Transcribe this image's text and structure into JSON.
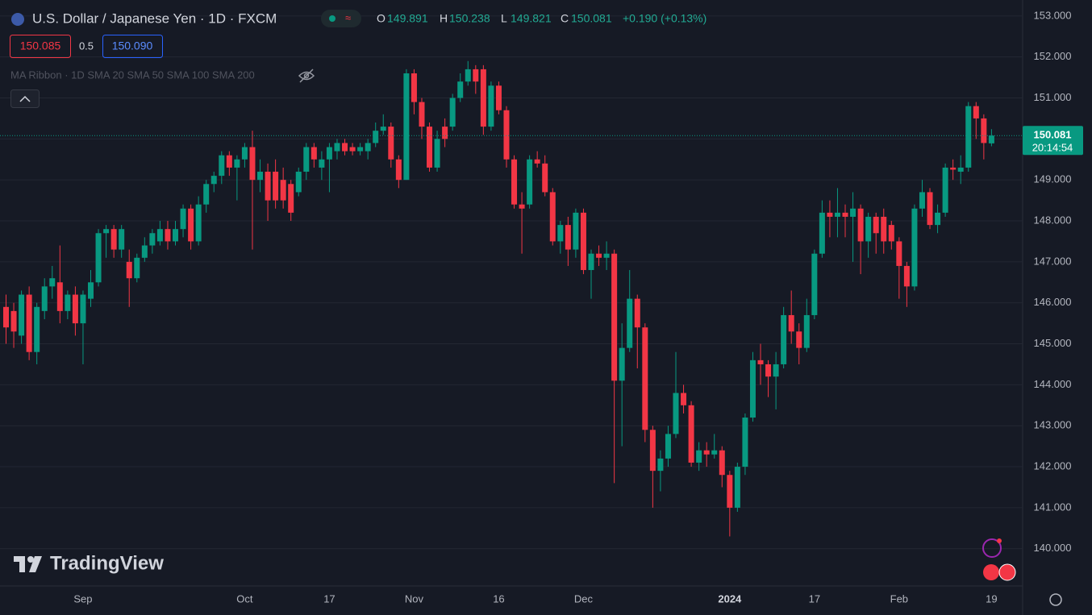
{
  "chart_data": {
    "type": "candlestick",
    "title": "U.S. Dollar / Japanese Yen · 1D · FXCM",
    "up_color": "#089981",
    "down_color": "#f23645",
    "grid": true,
    "ylim": [
      139.09,
      153.39
    ],
    "yticks": [
      {
        "value": 140,
        "label": "140.000"
      },
      {
        "value": 141,
        "label": "141.000"
      },
      {
        "value": 142,
        "label": "142.000"
      },
      {
        "value": 143,
        "label": "143.000"
      },
      {
        "value": 144,
        "label": "144.000"
      },
      {
        "value": 145,
        "label": "145.000"
      },
      {
        "value": 146,
        "label": "146.000"
      },
      {
        "value": 147,
        "label": "147.000"
      },
      {
        "value": 148,
        "label": "148.000"
      },
      {
        "value": 149,
        "label": "149.000"
      },
      {
        "value": 150,
        "label": "150.000"
      },
      {
        "value": 151,
        "label": "151.000"
      },
      {
        "value": 152,
        "label": "152.000"
      },
      {
        "value": 153,
        "label": "153.000"
      }
    ],
    "categories": [
      null,
      null,
      null,
      null,
      null,
      null,
      null,
      null,
      null,
      null,
      "Sep",
      null,
      null,
      null,
      null,
      null,
      null,
      null,
      null,
      null,
      null,
      null,
      null,
      null,
      null,
      null,
      null,
      null,
      null,
      null,
      null,
      "Oct",
      null,
      null,
      null,
      null,
      null,
      null,
      null,
      null,
      null,
      null,
      "17",
      null,
      null,
      null,
      null,
      null,
      null,
      null,
      null,
      null,
      null,
      "Nov",
      null,
      null,
      null,
      null,
      null,
      null,
      null,
      null,
      null,
      null,
      "16",
      null,
      null,
      null,
      null,
      null,
      null,
      null,
      null,
      null,
      null,
      "Dec",
      null,
      null,
      null,
      null,
      null,
      null,
      null,
      null,
      null,
      null,
      null,
      null,
      null,
      null,
      null,
      null,
      null,
      null,
      "2024",
      null,
      null,
      null,
      null,
      null,
      null,
      null,
      null,
      null,
      null,
      "17",
      null,
      null,
      null,
      null,
      null,
      null,
      null,
      null,
      null,
      null,
      "Feb",
      null,
      null,
      null,
      null,
      null,
      null,
      null,
      null,
      null,
      null,
      null,
      "19"
    ],
    "ohlc": [
      [
        145.9,
        146.2,
        145.0,
        145.4
      ],
      [
        145.8,
        146.0,
        144.9,
        145.3
      ],
      [
        145.2,
        146.3,
        145.0,
        146.2
      ],
      [
        146.2,
        146.4,
        144.6,
        144.8
      ],
      [
        144.8,
        146.0,
        144.5,
        145.9
      ],
      [
        145.8,
        146.6,
        145.6,
        146.4
      ],
      [
        146.4,
        146.9,
        146.1,
        146.6
      ],
      [
        146.5,
        147.4,
        145.5,
        145.8
      ],
      [
        145.8,
        146.3,
        145.6,
        146.2
      ],
      [
        146.2,
        146.4,
        145.2,
        145.5
      ],
      [
        145.5,
        146.3,
        144.5,
        146.2
      ],
      [
        146.1,
        146.8,
        145.9,
        146.5
      ],
      [
        146.5,
        147.8,
        146.4,
        147.7
      ],
      [
        147.7,
        147.9,
        147.1,
        147.8
      ],
      [
        147.8,
        147.9,
        147.1,
        147.3
      ],
      [
        147.3,
        147.9,
        147.1,
        147.8
      ],
      [
        147.0,
        147.3,
        145.9,
        146.6
      ],
      [
        146.6,
        147.2,
        146.5,
        147.1
      ],
      [
        147.1,
        147.6,
        147.0,
        147.4
      ],
      [
        147.4,
        147.8,
        147.2,
        147.7
      ],
      [
        147.5,
        148.0,
        147.4,
        147.8
      ],
      [
        147.8,
        148.0,
        147.3,
        147.5
      ],
      [
        147.5,
        148.0,
        147.4,
        147.8
      ],
      [
        147.8,
        148.4,
        147.6,
        148.3
      ],
      [
        148.3,
        148.4,
        147.3,
        147.5
      ],
      [
        147.5,
        148.6,
        147.4,
        148.4
      ],
      [
        148.4,
        149.0,
        148.2,
        148.9
      ],
      [
        148.9,
        149.2,
        148.7,
        149.1
      ],
      [
        149.1,
        149.7,
        148.9,
        149.6
      ],
      [
        149.6,
        149.7,
        149.1,
        149.3
      ],
      [
        149.3,
        149.6,
        148.5,
        149.5
      ],
      [
        149.5,
        149.9,
        149.3,
        149.8
      ],
      [
        149.8,
        150.2,
        147.3,
        149.0
      ],
      [
        149.0,
        149.5,
        148.7,
        149.2
      ],
      [
        149.2,
        149.4,
        148.0,
        148.5
      ],
      [
        149.2,
        149.5,
        148.3,
        148.5
      ],
      [
        149.0,
        149.3,
        148.3,
        148.5
      ],
      [
        148.9,
        149.0,
        148.0,
        148.2
      ],
      [
        148.7,
        149.3,
        148.6,
        149.2
      ],
      [
        149.2,
        149.9,
        149.0,
        149.8
      ],
      [
        149.8,
        149.9,
        149.3,
        149.5
      ],
      [
        149.3,
        149.7,
        149.0,
        149.5
      ],
      [
        149.5,
        149.9,
        148.7,
        149.8
      ],
      [
        149.7,
        150.0,
        149.5,
        149.9
      ],
      [
        149.9,
        150.0,
        149.6,
        149.7
      ],
      [
        149.8,
        149.9,
        149.6,
        149.7
      ],
      [
        149.7,
        149.9,
        149.6,
        149.8
      ],
      [
        149.7,
        150.0,
        149.5,
        149.9
      ],
      [
        149.9,
        150.4,
        149.8,
        150.2
      ],
      [
        150.2,
        150.6,
        150.1,
        150.3
      ],
      [
        150.3,
        150.4,
        149.3,
        149.5
      ],
      [
        149.5,
        149.6,
        148.8,
        149.0
      ],
      [
        149.0,
        151.7,
        149.0,
        151.6
      ],
      [
        151.6,
        151.7,
        150.6,
        150.9
      ],
      [
        150.9,
        151.0,
        150.0,
        150.3
      ],
      [
        150.3,
        150.4,
        149.2,
        149.3
      ],
      [
        149.3,
        150.2,
        149.2,
        150.0
      ],
      [
        150.3,
        150.5,
        149.8,
        150.0
      ],
      [
        150.3,
        151.1,
        150.2,
        151.0
      ],
      [
        151.0,
        151.6,
        150.9,
        151.4
      ],
      [
        151.4,
        151.9,
        151.3,
        151.7
      ],
      [
        151.7,
        151.8,
        151.1,
        151.4
      ],
      [
        151.7,
        151.8,
        150.1,
        150.3
      ],
      [
        150.3,
        151.4,
        150.2,
        151.3
      ],
      [
        151.3,
        151.4,
        150.6,
        150.7
      ],
      [
        150.7,
        150.8,
        149.3,
        149.5
      ],
      [
        149.5,
        149.6,
        148.3,
        148.4
      ],
      [
        148.4,
        148.7,
        147.2,
        148.3
      ],
      [
        148.4,
        149.6,
        148.3,
        149.5
      ],
      [
        149.5,
        149.7,
        149.3,
        149.4
      ],
      [
        149.4,
        149.6,
        148.6,
        148.7
      ],
      [
        148.7,
        148.8,
        147.4,
        147.5
      ],
      [
        147.5,
        148.0,
        147.2,
        147.9
      ],
      [
        147.9,
        148.1,
        146.9,
        147.3
      ],
      [
        147.3,
        148.3,
        147.1,
        148.2
      ],
      [
        148.2,
        148.3,
        146.7,
        146.8
      ],
      [
        146.8,
        147.3,
        146.1,
        147.2
      ],
      [
        147.2,
        147.4,
        146.9,
        147.1
      ],
      [
        147.1,
        147.5,
        146.8,
        147.2
      ],
      [
        147.2,
        147.3,
        141.6,
        144.1
      ],
      [
        144.1,
        145.5,
        142.5,
        144.9
      ],
      [
        144.9,
        146.8,
        144.8,
        146.1
      ],
      [
        146.1,
        146.2,
        144.4,
        145.4
      ],
      [
        145.4,
        145.5,
        142.6,
        142.9
      ],
      [
        142.9,
        143.0,
        141.0,
        141.9
      ],
      [
        141.9,
        142.4,
        141.4,
        142.2
      ],
      [
        142.2,
        143.0,
        142.0,
        142.8
      ],
      [
        142.8,
        144.8,
        142.7,
        143.8
      ],
      [
        143.8,
        144.0,
        143.3,
        143.5
      ],
      [
        143.5,
        143.6,
        142.0,
        142.1
      ],
      [
        142.1,
        142.6,
        141.9,
        142.4
      ],
      [
        142.4,
        142.6,
        142.0,
        142.3
      ],
      [
        142.3,
        142.8,
        142.2,
        142.4
      ],
      [
        142.4,
        142.5,
        141.5,
        141.8
      ],
      [
        141.8,
        141.9,
        140.3,
        141.0
      ],
      [
        141.0,
        142.1,
        140.9,
        142.0
      ],
      [
        142.0,
        143.3,
        141.8,
        143.2
      ],
      [
        143.2,
        144.8,
        143.1,
        144.6
      ],
      [
        144.6,
        145.0,
        144.0,
        144.5
      ],
      [
        144.5,
        144.6,
        143.7,
        144.2
      ],
      [
        144.2,
        144.8,
        143.4,
        144.5
      ],
      [
        144.5,
        145.9,
        144.4,
        145.7
      ],
      [
        145.7,
        146.3,
        145.0,
        145.3
      ],
      [
        145.3,
        145.5,
        144.5,
        144.9
      ],
      [
        144.9,
        146.1,
        144.8,
        145.7
      ],
      [
        145.7,
        147.3,
        145.6,
        147.2
      ],
      [
        147.2,
        148.5,
        147.1,
        148.2
      ],
      [
        148.2,
        148.5,
        147.6,
        148.1
      ],
      [
        148.1,
        148.8,
        147.6,
        148.2
      ],
      [
        148.2,
        148.4,
        147.6,
        148.1
      ],
      [
        148.1,
        148.7,
        147.0,
        148.3
      ],
      [
        148.3,
        148.4,
        146.7,
        147.5
      ],
      [
        147.5,
        148.2,
        147.1,
        148.1
      ],
      [
        148.1,
        148.2,
        147.2,
        147.7
      ],
      [
        148.1,
        148.3,
        147.2,
        147.5
      ],
      [
        147.9,
        148.0,
        147.3,
        147.5
      ],
      [
        147.5,
        147.6,
        146.1,
        146.9
      ],
      [
        146.9,
        147.0,
        145.9,
        146.4
      ],
      [
        146.4,
        148.4,
        146.3,
        148.3
      ],
      [
        148.3,
        149.0,
        148.1,
        148.7
      ],
      [
        148.7,
        148.8,
        147.8,
        147.9
      ],
      [
        147.9,
        148.4,
        147.7,
        148.2
      ],
      [
        148.2,
        149.4,
        148.1,
        149.3
      ],
      [
        149.3,
        149.5,
        149.0,
        149.25
      ],
      [
        149.2,
        149.6,
        148.9,
        149.3
      ],
      [
        149.3,
        150.9,
        149.2,
        150.8
      ],
      [
        150.8,
        150.9,
        150.0,
        150.5
      ],
      [
        150.5,
        150.6,
        149.5,
        149.9
      ],
      [
        149.891,
        150.238,
        149.821,
        150.081
      ],
      null
    ]
  },
  "legend": {
    "ohlc_labels": [
      "O",
      "H",
      "L",
      "C"
    ],
    "change": "+0.190 (+0.13%)"
  },
  "trade": {
    "sell": "150.085",
    "spread": "0.5",
    "buy": "150.090"
  },
  "indicator": "MA Ribbon · 1D SMA 20 SMA 50 SMA 100 SMA 200",
  "countdown": "20:14:54",
  "brand": "TradingView"
}
